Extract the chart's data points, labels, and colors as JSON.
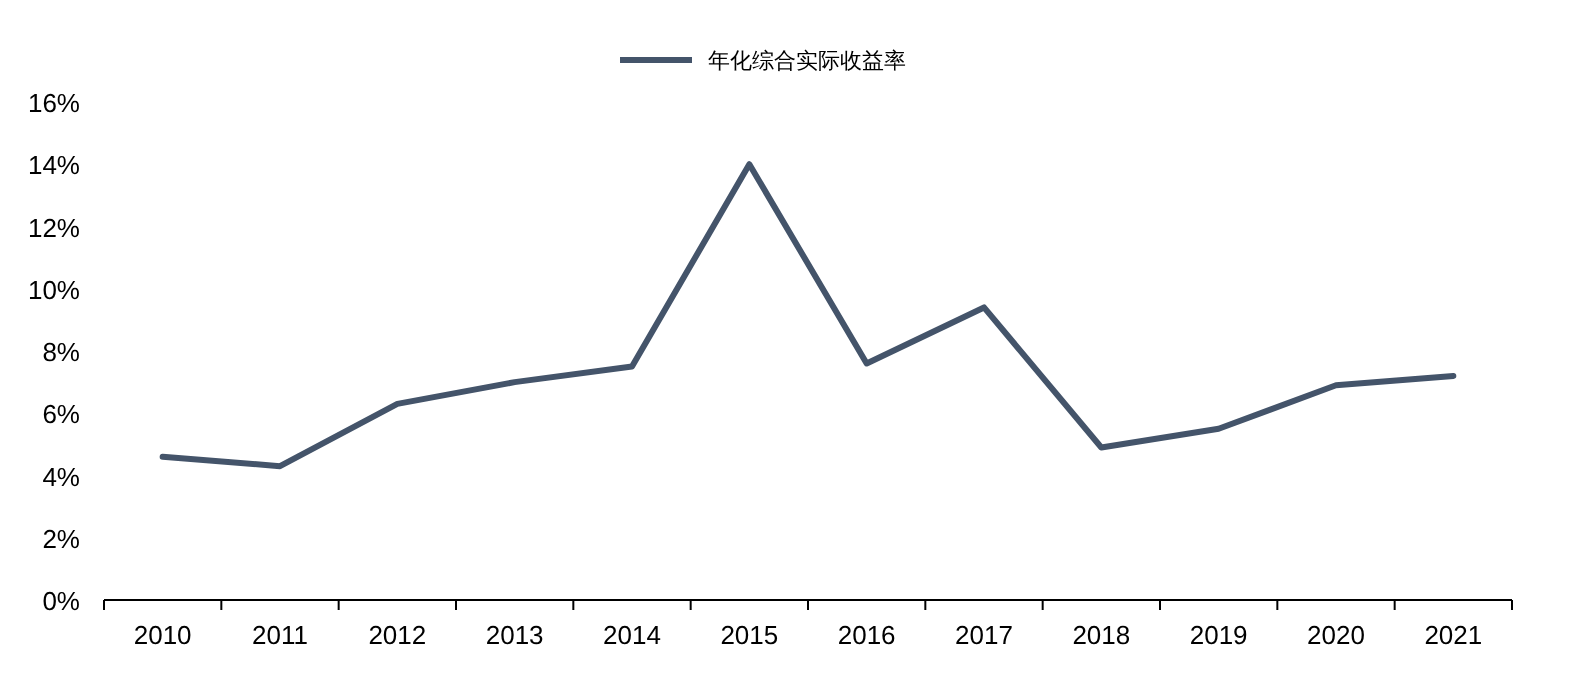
{
  "chart_data": {
    "type": "line",
    "categories": [
      "2010",
      "2011",
      "2012",
      "2013",
      "2014",
      "2015",
      "2016",
      "2017",
      "2018",
      "2019",
      "2020",
      "2021"
    ],
    "series": [
      {
        "name": "年化综合实际收益率",
        "color": "#44546a",
        "values": [
          4.6,
          4.3,
          6.3,
          7.0,
          7.5,
          14.0,
          7.6,
          9.4,
          4.9,
          5.5,
          6.9,
          7.2
        ]
      }
    ],
    "ylim": [
      0,
      16
    ],
    "yticks": [
      {
        "value": 0,
        "label": "0%"
      },
      {
        "value": 2,
        "label": "2%"
      },
      {
        "value": 4,
        "label": "4%"
      },
      {
        "value": 6,
        "label": "6%"
      },
      {
        "value": 8,
        "label": "8%"
      },
      {
        "value": 10,
        "label": "10%"
      },
      {
        "value": 12,
        "label": "12%"
      },
      {
        "value": 14,
        "label": "14%"
      },
      {
        "value": 16,
        "label": "16%"
      }
    ],
    "legend": "top",
    "grid": false
  }
}
